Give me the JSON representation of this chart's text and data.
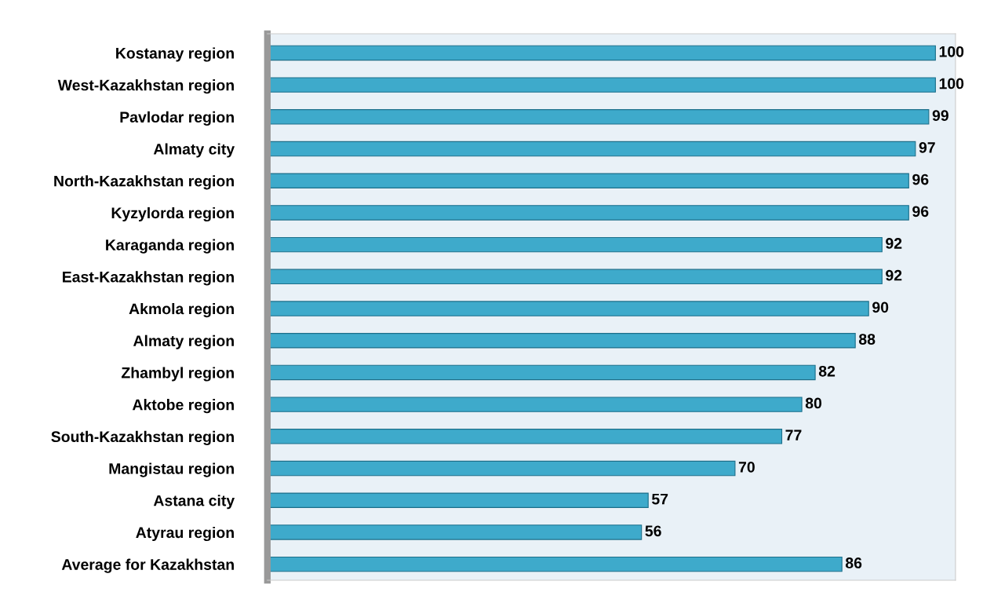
{
  "chart_data": {
    "type": "bar",
    "orientation": "horizontal",
    "categories": [
      "Kostanay region",
      "West-Kazakhstan region",
      "Pavlodar region",
      "Almaty city",
      "North-Kazakhstan region",
      "Kyzylorda region",
      "Karaganda region",
      "East-Kazakhstan region",
      "Akmola region",
      "Almaty region",
      "Zhambyl region",
      "Aktobe region",
      "South-Kazakhstan region",
      "Mangistau region",
      "Astana city",
      "Atyrau region",
      "Average for Kazakhstan"
    ],
    "values": [
      100,
      100,
      99,
      97,
      96,
      96,
      92,
      92,
      90,
      88,
      82,
      80,
      77,
      70,
      57,
      56,
      86
    ],
    "color": "#3eaacb",
    "data_labels": true,
    "grid": false,
    "legend": false
  }
}
